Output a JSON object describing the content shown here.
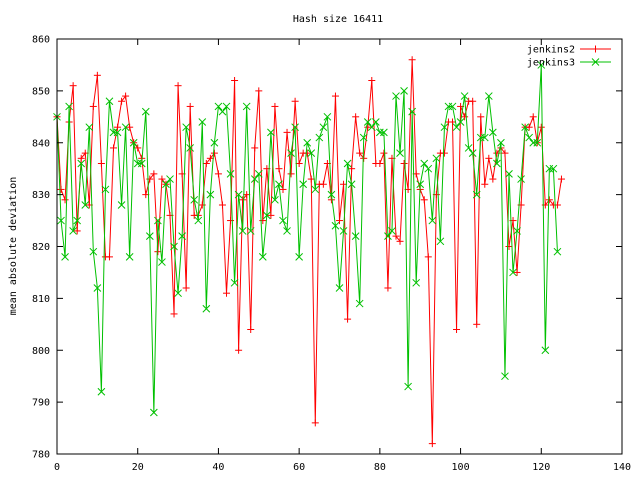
{
  "chart_data": {
    "type": "line",
    "title": "Hash size 16411",
    "xlabel": "",
    "ylabel": "mean absolute deviation",
    "xlim": [
      0,
      140
    ],
    "ylim": [
      780,
      860
    ],
    "x_ticks": [
      0,
      20,
      40,
      60,
      80,
      100,
      120,
      140
    ],
    "y_ticks": [
      780,
      790,
      800,
      810,
      820,
      830,
      840,
      850,
      860
    ],
    "x_tick_labels": [
      "0",
      "20",
      "40",
      "60",
      "80",
      "100",
      "120",
      "140"
    ],
    "y_tick_labels": [
      "780",
      "790",
      "800",
      "810",
      "820",
      "830",
      "840",
      "850",
      "860"
    ],
    "grid": false,
    "legend_position": "top-right",
    "series": [
      {
        "name": "jenkins2",
        "color": "#ff0000",
        "marker": "plus",
        "x_start": 0,
        "values": [
          845,
          831,
          829,
          844,
          851,
          823,
          837,
          838,
          828,
          847,
          853,
          836,
          818,
          818,
          839,
          843,
          848,
          849,
          843,
          840,
          839,
          837,
          830,
          833,
          834,
          819,
          833,
          832,
          826,
          807,
          851,
          834,
          812,
          847,
          826,
          826,
          828,
          836,
          837,
          838,
          834,
          828,
          811,
          825,
          852,
          800,
          829,
          830,
          804,
          839,
          850,
          825,
          835,
          826,
          847,
          835,
          831,
          842,
          834,
          848,
          836,
          838,
          838,
          833,
          786,
          832,
          832,
          836,
          829,
          849,
          825,
          832,
          806,
          835,
          845,
          838,
          837,
          843,
          852,
          836,
          836,
          838,
          812,
          837,
          822,
          821,
          836,
          831,
          856,
          834,
          831,
          829,
          818,
          782,
          830,
          838,
          838,
          844,
          844,
          804,
          847,
          845,
          848,
          848,
          805,
          845,
          832,
          837,
          833,
          838,
          839,
          838,
          820,
          825,
          815,
          828,
          843,
          843,
          845,
          840,
          843,
          828,
          829,
          828,
          828,
          833
        ],
        "line_values": [
          845,
          831,
          829,
          844,
          851,
          823,
          837,
          838,
          828,
          847,
          853,
          836,
          818,
          818,
          839,
          843,
          848,
          849,
          843,
          840,
          839,
          837,
          830,
          833,
          834,
          819,
          833,
          832,
          826,
          807,
          851,
          834,
          812,
          847,
          826,
          826,
          828,
          836,
          837,
          838,
          834,
          828,
          811,
          825,
          852,
          800,
          829,
          830,
          804,
          839,
          850,
          825,
          835,
          826,
          847,
          835,
          831,
          842,
          834,
          848,
          836,
          838,
          838,
          833,
          786,
          832,
          832,
          836,
          829,
          849,
          825,
          832,
          806,
          835,
          845,
          838,
          837,
          843,
          852,
          836,
          836,
          838,
          812,
          837,
          822,
          821,
          836,
          831,
          856,
          834,
          831,
          829,
          818,
          782,
          830,
          838,
          838,
          844,
          844,
          804,
          847,
          845,
          848,
          848,
          805,
          845,
          832,
          837,
          833,
          838,
          839,
          838,
          820,
          825,
          815,
          828,
          843,
          843,
          845,
          840,
          843,
          828,
          829,
          828,
          828,
          833
        ]
      },
      {
        "name": "jenkins3",
        "color": "#00c000",
        "marker": "cross",
        "x_start": 0,
        "values": [
          845,
          825,
          818,
          847,
          823,
          825,
          836,
          828,
          843,
          819,
          812,
          792,
          831,
          848,
          842,
          842,
          828,
          843,
          818,
          840,
          836,
          836,
          846,
          822,
          788,
          825,
          817,
          832,
          833,
          820,
          811,
          822,
          843,
          839,
          829,
          825,
          844,
          808,
          830,
          840,
          847,
          846,
          847,
          834,
          813,
          830,
          823,
          847,
          823,
          833,
          834,
          818,
          826,
          842,
          829,
          832,
          825,
          823,
          838,
          843,
          818,
          832,
          840,
          838,
          831,
          841,
          843,
          845,
          830,
          824,
          812,
          823,
          836,
          832,
          822,
          809,
          841,
          844,
          843,
          844,
          842,
          842,
          822,
          823,
          849,
          838,
          850,
          793,
          846,
          813,
          832,
          836,
          835,
          825,
          837,
          821,
          843,
          847,
          847,
          843,
          844,
          849,
          839,
          838,
          830,
          841,
          841,
          849,
          842,
          836,
          840,
          795,
          834,
          815,
          823,
          833,
          843,
          841,
          840,
          840,
          855,
          800,
          835,
          835,
          819
        ],
        "line_values": [
          845,
          825,
          818,
          847,
          823,
          825,
          836,
          828,
          843,
          819,
          812,
          792,
          831,
          848,
          842,
          842,
          828,
          843,
          818,
          840,
          836,
          836,
          846,
          822,
          788,
          825,
          817,
          832,
          833,
          820,
          811,
          822,
          843,
          839,
          829,
          825,
          844,
          808,
          830,
          840,
          847,
          846,
          847,
          834,
          813,
          830,
          823,
          847,
          823,
          833,
          834,
          818,
          826,
          842,
          829,
          832,
          825,
          823,
          838,
          843,
          818,
          832,
          840,
          838,
          831,
          841,
          843,
          845,
          830,
          824,
          812,
          823,
          836,
          832,
          822,
          809,
          841,
          844,
          843,
          844,
          842,
          842,
          822,
          823,
          849,
          838,
          850,
          793,
          846,
          813,
          832,
          836,
          835,
          825,
          837,
          821,
          843,
          847,
          847,
          843,
          844,
          849,
          839,
          838,
          830,
          841,
          841,
          849,
          842,
          836,
          840,
          795,
          834,
          815,
          823,
          833,
          843,
          841,
          840,
          840,
          855,
          800,
          835,
          835,
          819
        ]
      }
    ]
  }
}
